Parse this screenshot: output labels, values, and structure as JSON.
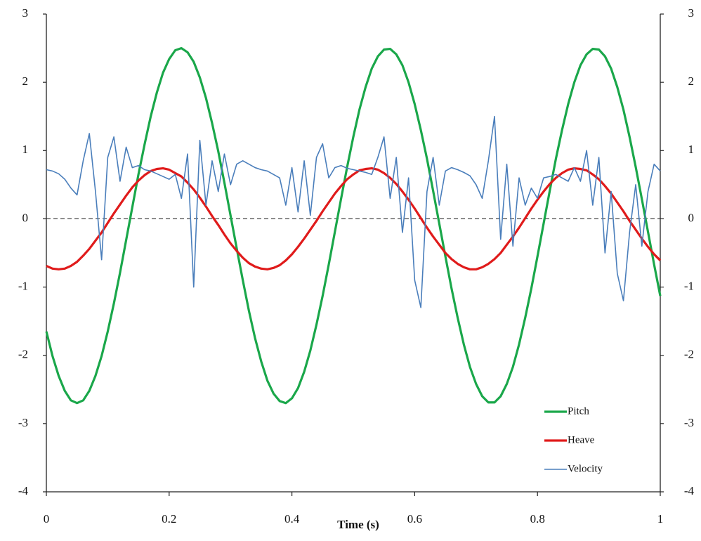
{
  "chart_data": {
    "type": "line",
    "x_label": "Time (s)",
    "x": [
      0,
      0.01,
      0.02,
      0.03,
      0.04,
      0.05,
      0.06,
      0.07,
      0.08,
      0.09,
      0.1,
      0.11,
      0.12,
      0.13,
      0.14,
      0.15,
      0.16,
      0.17,
      0.18,
      0.19,
      0.2,
      0.21,
      0.22,
      0.23,
      0.24,
      0.25,
      0.26,
      0.27,
      0.28,
      0.29,
      0.3,
      0.31,
      0.32,
      0.33,
      0.34,
      0.35,
      0.36,
      0.37,
      0.38,
      0.39,
      0.4,
      0.41,
      0.42,
      0.43,
      0.44,
      0.45,
      0.46,
      0.47,
      0.48,
      0.49,
      0.5,
      0.51,
      0.52,
      0.53,
      0.54,
      0.55,
      0.56,
      0.57,
      0.58,
      0.59,
      0.6,
      0.61,
      0.62,
      0.63,
      0.64,
      0.65,
      0.66,
      0.67,
      0.68,
      0.69,
      0.7,
      0.71,
      0.72,
      0.73,
      0.74,
      0.75,
      0.76,
      0.77,
      0.78,
      0.79,
      0.8,
      0.81,
      0.82,
      0.83,
      0.84,
      0.85,
      0.86,
      0.87,
      0.88,
      0.89,
      0.9,
      0.91,
      0.92,
      0.93,
      0.94,
      0.95,
      0.96,
      0.97,
      0.98,
      0.99,
      1
    ],
    "series": [
      {
        "name": "Pitch",
        "color": "#1aa74a",
        "values": [
          -1.65,
          -2.01,
          -2.3,
          -2.52,
          -2.66,
          -2.7,
          -2.66,
          -2.52,
          -2.3,
          -2.01,
          -1.65,
          -1.24,
          -0.79,
          -0.31,
          0.17,
          0.65,
          1.09,
          1.5,
          1.85,
          2.14,
          2.34,
          2.47,
          2.5,
          2.44,
          2.3,
          2.07,
          1.77,
          1.4,
          0.99,
          0.53,
          0.05,
          -0.43,
          -0.9,
          -1.35,
          -1.75,
          -2.09,
          -2.37,
          -2.56,
          -2.67,
          -2.7,
          -2.63,
          -2.48,
          -2.24,
          -1.93,
          -1.55,
          -1.13,
          -0.67,
          -0.19,
          0.29,
          0.76,
          1.2,
          1.6,
          1.93,
          2.2,
          2.38,
          2.48,
          2.49,
          2.41,
          2.25,
          2.0,
          1.68,
          1.3,
          0.88,
          0.41,
          -0.07,
          -0.55,
          -1.02,
          -1.45,
          -1.84,
          -2.17,
          -2.42,
          -2.6,
          -2.69,
          -2.69,
          -2.6,
          -2.42,
          -2.17,
          -1.84,
          -1.45,
          -1.02,
          -0.55,
          -0.07,
          0.41,
          0.88,
          1.3,
          1.68,
          2.0,
          2.25,
          2.41,
          2.49,
          2.48,
          2.38,
          2.2,
          1.93,
          1.6,
          1.2,
          0.76,
          0.29,
          -0.19,
          -0.67,
          -1.13
        ]
      },
      {
        "name": "Heave",
        "color": "#e01b1b",
        "values": [
          -0.69,
          -0.73,
          -0.74,
          -0.73,
          -0.69,
          -0.63,
          -0.54,
          -0.44,
          -0.32,
          -0.2,
          -0.06,
          0.08,
          0.21,
          0.34,
          0.46,
          0.56,
          0.64,
          0.7,
          0.73,
          0.74,
          0.72,
          0.67,
          0.62,
          0.53,
          0.43,
          0.31,
          0.18,
          0.04,
          -0.09,
          -0.23,
          -0.36,
          -0.47,
          -0.57,
          -0.65,
          -0.7,
          -0.73,
          -0.74,
          -0.72,
          -0.68,
          -0.61,
          -0.52,
          -0.41,
          -0.29,
          -0.16,
          -0.03,
          0.11,
          0.24,
          0.37,
          0.48,
          0.58,
          0.65,
          0.71,
          0.73,
          0.74,
          0.72,
          0.67,
          0.6,
          0.51,
          0.4,
          0.28,
          0.15,
          0.01,
          -0.13,
          -0.26,
          -0.38,
          -0.5,
          -0.59,
          -0.66,
          -0.71,
          -0.74,
          -0.74,
          -0.71,
          -0.66,
          -0.59,
          -0.5,
          -0.38,
          -0.26,
          -0.13,
          0.01,
          0.15,
          0.28,
          0.4,
          0.51,
          0.6,
          0.67,
          0.72,
          0.74,
          0.73,
          0.71,
          0.65,
          0.58,
          0.48,
          0.37,
          0.24,
          0.11,
          -0.03,
          -0.16,
          -0.29,
          -0.41,
          -0.52,
          -0.61
        ]
      },
      {
        "name": "Velocity",
        "color": "#4a7ebb",
        "values": [
          0.72,
          0.7,
          0.66,
          0.58,
          0.45,
          0.35,
          0.85,
          1.25,
          0.4,
          -0.6,
          0.9,
          1.2,
          0.55,
          1.05,
          0.75,
          0.78,
          0.72,
          0.7,
          0.66,
          0.62,
          0.58,
          0.65,
          0.3,
          0.95,
          -1.0,
          1.15,
          0.2,
          0.85,
          0.4,
          0.95,
          0.5,
          0.8,
          0.85,
          0.8,
          0.75,
          0.72,
          0.7,
          0.65,
          0.6,
          0.2,
          0.75,
          0.1,
          0.85,
          0.05,
          0.9,
          1.1,
          0.6,
          0.75,
          0.78,
          0.74,
          0.72,
          0.7,
          0.68,
          0.65,
          0.9,
          1.2,
          0.3,
          0.9,
          -0.2,
          0.6,
          -0.9,
          -1.3,
          0.4,
          0.9,
          0.2,
          0.7,
          0.75,
          0.72,
          0.68,
          0.63,
          0.5,
          0.3,
          0.85,
          1.5,
          -0.3,
          0.8,
          -0.4,
          0.6,
          0.2,
          0.45,
          0.3,
          0.6,
          0.62,
          0.65,
          0.6,
          0.55,
          0.75,
          0.55,
          1.0,
          0.2,
          0.9,
          -0.5,
          0.4,
          -0.8,
          -1.2,
          -0.2,
          0.5,
          -0.4,
          0.4,
          0.8,
          0.7
        ]
      }
    ],
    "xlim": [
      0,
      1
    ],
    "xticks": [
      0,
      0.2,
      0.4,
      0.6,
      0.8,
      1
    ],
    "ylim": [
      -4,
      3
    ],
    "yticks": [
      -4,
      -3,
      -2,
      -1,
      0,
      1,
      2,
      3
    ],
    "y2lim": [
      -4,
      3
    ],
    "y2ticks": [
      -4,
      -3,
      -2,
      -1,
      0,
      1,
      2,
      3
    ],
    "reference_line": 0,
    "legend": "lower right"
  }
}
